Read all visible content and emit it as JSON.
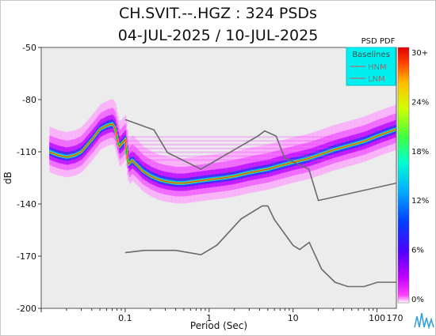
{
  "title": "CH.SVIT.--.HGZ : 324 PSDs",
  "subtitle": "04-JUL-2025 / 10-JUL-2025",
  "colorbar_title": "PSD PDF",
  "colorbar_ticks": [
    "30+",
    "24%",
    "18%",
    "12%",
    "6%",
    "0%"
  ],
  "legend": {
    "title": "Baselines",
    "items": [
      "HNM",
      "LNM"
    ],
    "bg_color": "#00f0f0"
  },
  "chart_data": {
    "type": "heatmap",
    "title": "CH.SVIT.--.HGZ : 324 PSDs",
    "subtitle": "04-JUL-2025 / 10-JUL-2025",
    "xlabel": "Period (Sec)",
    "ylabel": "dB",
    "xscale": "log",
    "xlim": [
      0.01,
      170
    ],
    "ylim": [
      -200,
      -50
    ],
    "xticks": [
      0.1,
      1,
      10,
      100,
      170
    ],
    "xtick_labels": [
      "0.1",
      "1",
      "10",
      "100",
      "170"
    ],
    "yticks": [
      -50,
      -80,
      -110,
      -140,
      -170,
      -200
    ],
    "ytick_labels": [
      "-50",
      "-80",
      "-110",
      "-140",
      "-170",
      "-200"
    ],
    "grid": false,
    "legend_position": "top-right",
    "colorbar": {
      "label": "PSD PDF",
      "min_percent": 0,
      "max_percent": 30
    },
    "baselines": [
      {
        "name": "HNM",
        "x": [
          0.1,
          0.22,
          0.32,
          0.8,
          3.8,
          4.6,
          6.3,
          7.9,
          15.4,
          20,
          170
        ],
        "y": [
          -91.5,
          -97.4,
          -110.5,
          -120,
          -101,
          -98,
          -101,
          -113.5,
          -120,
          -138,
          -128
        ]
      },
      {
        "name": "LNM",
        "x": [
          0.1,
          0.17,
          0.4,
          0.8,
          1.24,
          2.4,
          4.3,
          5,
          6,
          10,
          12,
          15.6,
          21.9,
          31.6,
          45,
          70,
          101,
          154,
          170
        ],
        "y": [
          -168,
          -166.7,
          -166.7,
          -169.2,
          -163.7,
          -148.6,
          -141.1,
          -141.1,
          -149,
          -163.8,
          -166.2,
          -162.1,
          -177.5,
          -185,
          -187.5,
          -187.5,
          -185,
          -185,
          -185
        ]
      }
    ],
    "pdf_mode": {
      "x": [
        0.0125,
        0.014,
        0.016,
        0.02,
        0.025,
        0.03,
        0.04,
        0.05,
        0.06,
        0.07,
        0.075,
        0.08,
        0.085,
        0.1,
        0.105,
        0.11,
        0.12,
        0.14,
        0.16,
        0.2,
        0.25,
        0.3,
        0.4,
        0.5,
        0.7,
        1,
        1.5,
        2,
        3,
        5,
        7,
        10,
        15,
        20,
        30,
        50,
        70,
        100,
        130,
        170
      ],
      "y": [
        -110,
        -111,
        -112,
        -113,
        -112,
        -110,
        -103,
        -97,
        -95,
        -94,
        -96,
        -102,
        -107,
        -103,
        -112,
        -117,
        -115,
        -118,
        -121,
        -124,
        -126,
        -127,
        -128,
        -128,
        -127,
        -126,
        -125,
        -124,
        -122,
        -120,
        -118,
        -116,
        -114,
        -112,
        -109,
        -106,
        -104,
        -101,
        -99,
        -97
      ]
    }
  }
}
